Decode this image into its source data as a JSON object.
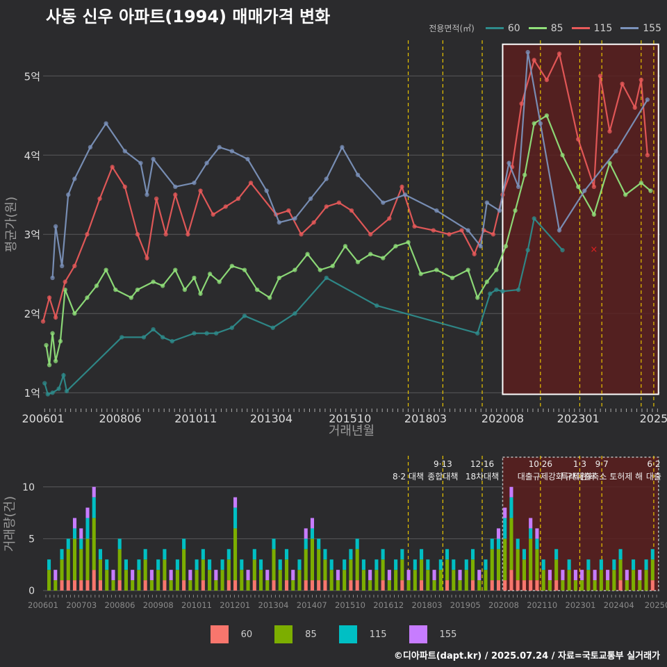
{
  "title": "사동 신우 아파트(1994) 매매가격 변화",
  "footer": "©디아파트(dapt.kr) / 2025.07.24 / 자료=국토교통부 실거래가",
  "legend_title": "전용면적(㎡)",
  "colors": {
    "line60": "#2e8b8b",
    "line85": "#90e07a",
    "line115": "#e85a5a",
    "line155": "#7b92bb",
    "bar60": "#f8766d",
    "bar85": "#7cae00",
    "bar115": "#00bfc4",
    "bar155": "#c77cff",
    "policy": "#e8c400",
    "highlight": "#5a1e1e"
  },
  "chart_data": [
    {
      "type": "line",
      "ylabel": "평균가(원)",
      "xlabel": "거래년월",
      "x_tick_labels": [
        "200601",
        "200806",
        "201011",
        "201304",
        "201510",
        "201803",
        "202008",
        "202301",
        "2025"
      ],
      "y_ticks": [
        1,
        2,
        3,
        4,
        5
      ],
      "y_tick_labels": [
        "1억",
        "2억",
        "3억",
        "4억",
        "5억"
      ],
      "ylim": [
        0.8,
        5.45
      ],
      "xlim": [
        2006.0,
        2025.6
      ],
      "highlight_range": [
        2020.6,
        2025.55
      ],
      "highlight_ylim": [
        0.98,
        5.4
      ],
      "policy_lines": [
        2017.6,
        2018.7,
        2019.95,
        2021.8,
        2023.05,
        2023.75,
        2025.0,
        2025.4
      ],
      "marker": {
        "x": 2023.5,
        "y": 2.82,
        "symbol": "x"
      },
      "series": [
        {
          "name": "60",
          "points": [
            [
              2006.05,
              1.12
            ],
            [
              2006.15,
              0.98
            ],
            [
              2006.3,
              1.0
            ],
            [
              2006.5,
              1.05
            ],
            [
              2006.65,
              1.22
            ],
            [
              2006.75,
              1.02
            ],
            [
              2008.5,
              1.7
            ],
            [
              2009.2,
              1.7
            ],
            [
              2009.5,
              1.8
            ],
            [
              2009.8,
              1.7
            ],
            [
              2010.1,
              1.65
            ],
            [
              2010.8,
              1.75
            ],
            [
              2011.2,
              1.75
            ],
            [
              2011.5,
              1.75
            ],
            [
              2012.0,
              1.82
            ],
            [
              2012.4,
              1.97
            ],
            [
              2013.3,
              1.82
            ],
            [
              2014.0,
              2.0
            ],
            [
              2015.0,
              2.45
            ],
            [
              2016.6,
              2.1
            ],
            [
              2019.8,
              1.75
            ],
            [
              2020.2,
              2.25
            ],
            [
              2020.4,
              2.3
            ],
            [
              2020.6,
              2.28
            ],
            [
              2021.1,
              2.3
            ],
            [
              2021.4,
              2.8
            ],
            [
              2021.6,
              3.2
            ],
            [
              2022.5,
              2.8
            ]
          ]
        },
        {
          "name": "85",
          "points": [
            [
              2006.1,
              1.6
            ],
            [
              2006.2,
              1.35
            ],
            [
              2006.3,
              1.75
            ],
            [
              2006.4,
              1.4
            ],
            [
              2006.55,
              1.65
            ],
            [
              2006.7,
              2.3
            ],
            [
              2007.0,
              2.0
            ],
            [
              2007.4,
              2.2
            ],
            [
              2007.7,
              2.35
            ],
            [
              2008.0,
              2.55
            ],
            [
              2008.3,
              2.3
            ],
            [
              2008.8,
              2.2
            ],
            [
              2009.0,
              2.3
            ],
            [
              2009.5,
              2.4
            ],
            [
              2009.8,
              2.35
            ],
            [
              2010.2,
              2.55
            ],
            [
              2010.5,
              2.3
            ],
            [
              2010.8,
              2.45
            ],
            [
              2011.0,
              2.25
            ],
            [
              2011.3,
              2.5
            ],
            [
              2011.6,
              2.4
            ],
            [
              2012.0,
              2.6
            ],
            [
              2012.4,
              2.55
            ],
            [
              2012.8,
              2.3
            ],
            [
              2013.2,
              2.2
            ],
            [
              2013.5,
              2.45
            ],
            [
              2014.0,
              2.55
            ],
            [
              2014.4,
              2.75
            ],
            [
              2014.8,
              2.55
            ],
            [
              2015.2,
              2.6
            ],
            [
              2015.6,
              2.85
            ],
            [
              2016.0,
              2.65
            ],
            [
              2016.4,
              2.75
            ],
            [
              2016.8,
              2.7
            ],
            [
              2017.2,
              2.85
            ],
            [
              2017.6,
              2.9
            ],
            [
              2018.0,
              2.5
            ],
            [
              2018.5,
              2.55
            ],
            [
              2019.0,
              2.45
            ],
            [
              2019.5,
              2.55
            ],
            [
              2019.8,
              2.2
            ],
            [
              2020.1,
              2.4
            ],
            [
              2020.4,
              2.55
            ],
            [
              2020.7,
              2.85
            ],
            [
              2021.0,
              3.3
            ],
            [
              2021.3,
              3.75
            ],
            [
              2021.6,
              4.4
            ],
            [
              2022.0,
              4.5
            ],
            [
              2022.5,
              4.0
            ],
            [
              2023.0,
              3.6
            ],
            [
              2023.5,
              3.25
            ],
            [
              2024.0,
              3.9
            ],
            [
              2024.5,
              3.5
            ],
            [
              2025.0,
              3.65
            ],
            [
              2025.3,
              3.55
            ]
          ]
        },
        {
          "name": "115",
          "points": [
            [
              2006.0,
              1.9
            ],
            [
              2006.2,
              2.2
            ],
            [
              2006.4,
              1.95
            ],
            [
              2006.7,
              2.4
            ],
            [
              2007.0,
              2.6
            ],
            [
              2007.4,
              3.0
            ],
            [
              2007.8,
              3.45
            ],
            [
              2008.2,
              3.85
            ],
            [
              2008.6,
              3.6
            ],
            [
              2009.0,
              3.0
            ],
            [
              2009.3,
              2.7
            ],
            [
              2009.6,
              3.45
            ],
            [
              2009.9,
              3.0
            ],
            [
              2010.2,
              3.5
            ],
            [
              2010.6,
              3.0
            ],
            [
              2011.0,
              3.55
            ],
            [
              2011.4,
              3.25
            ],
            [
              2011.8,
              3.35
            ],
            [
              2012.2,
              3.45
            ],
            [
              2012.6,
              3.65
            ],
            [
              2013.4,
              3.25
            ],
            [
              2013.8,
              3.3
            ],
            [
              2014.2,
              3.0
            ],
            [
              2014.6,
              3.15
            ],
            [
              2015.0,
              3.35
            ],
            [
              2015.4,
              3.4
            ],
            [
              2015.8,
              3.3
            ],
            [
              2016.4,
              3.0
            ],
            [
              2017.0,
              3.2
            ],
            [
              2017.4,
              3.6
            ],
            [
              2017.8,
              3.1
            ],
            [
              2018.4,
              3.05
            ],
            [
              2018.9,
              3.0
            ],
            [
              2019.3,
              3.05
            ],
            [
              2019.7,
              2.75
            ],
            [
              2020.0,
              3.05
            ],
            [
              2020.3,
              3.0
            ],
            [
              2020.6,
              3.5
            ],
            [
              2020.9,
              3.85
            ],
            [
              2021.2,
              4.65
            ],
            [
              2021.6,
              5.2
            ],
            [
              2022.0,
              4.95
            ],
            [
              2022.4,
              5.28
            ],
            [
              2023.0,
              4.2
            ],
            [
              2023.5,
              3.6
            ],
            [
              2023.7,
              5.0
            ],
            [
              2024.0,
              4.3
            ],
            [
              2024.4,
              4.9
            ],
            [
              2024.8,
              4.6
            ],
            [
              2025.0,
              4.95
            ],
            [
              2025.2,
              4.0
            ]
          ]
        },
        {
          "name": "155",
          "points": [
            [
              2006.3,
              2.45
            ],
            [
              2006.4,
              3.1
            ],
            [
              2006.6,
              2.6
            ],
            [
              2006.8,
              3.5
            ],
            [
              2007.0,
              3.7
            ],
            [
              2007.5,
              4.1
            ],
            [
              2008.0,
              4.4
            ],
            [
              2008.6,
              4.05
            ],
            [
              2009.1,
              3.9
            ],
            [
              2009.3,
              3.5
            ],
            [
              2009.5,
              3.95
            ],
            [
              2010.2,
              3.6
            ],
            [
              2010.8,
              3.65
            ],
            [
              2011.2,
              3.9
            ],
            [
              2011.6,
              4.1
            ],
            [
              2012.0,
              4.05
            ],
            [
              2012.5,
              3.95
            ],
            [
              2013.1,
              3.55
            ],
            [
              2013.5,
              3.15
            ],
            [
              2014.0,
              3.2
            ],
            [
              2014.5,
              3.45
            ],
            [
              2015.0,
              3.7
            ],
            [
              2015.5,
              4.1
            ],
            [
              2016.0,
              3.75
            ],
            [
              2016.8,
              3.4
            ],
            [
              2017.5,
              3.5
            ],
            [
              2018.5,
              3.3
            ],
            [
              2019.5,
              3.05
            ],
            [
              2019.9,
              2.85
            ],
            [
              2020.1,
              3.4
            ],
            [
              2020.5,
              3.3
            ],
            [
              2020.8,
              3.9
            ],
            [
              2021.1,
              3.6
            ],
            [
              2021.4,
              5.3
            ],
            [
              2021.8,
              4.4
            ],
            [
              2022.4,
              3.05
            ],
            [
              2023.2,
              3.55
            ],
            [
              2024.2,
              4.05
            ],
            [
              2025.2,
              4.7
            ]
          ]
        }
      ]
    },
    {
      "type": "bar",
      "ylabel": "거래량(건)",
      "y_ticks": [
        0,
        5,
        10
      ],
      "y_tick_labels": [
        "0",
        "5",
        "10"
      ],
      "ylim": [
        0,
        13
      ],
      "x_tick_labels": [
        "200601",
        "200703",
        "200806",
        "200908",
        "201011",
        "201201",
        "201304",
        "201407",
        "201510",
        "201612",
        "201803",
        "201905",
        "202008",
        "202110",
        "202301",
        "202404",
        "20250"
      ],
      "highlight_range": [
        2020.6,
        2025.55
      ],
      "annotations": [
        {
          "x": 2017.6,
          "line1": "",
          "line2": "8·2 대책"
        },
        {
          "x": 2018.7,
          "line1": "9·13",
          "line2": "종합대책"
        },
        {
          "x": 2019.95,
          "line1": "12·16",
          "line2": "18차대책"
        },
        {
          "x": 2021.8,
          "line1": "10·26",
          "line2": "대출규제강화"
        },
        {
          "x": 2023.05,
          "line1": "1·3",
          "line2": "규제완화"
        },
        {
          "x": 2023.75,
          "line1": "9·7",
          "line2": "특례대출축소 토허제 해"
        },
        {
          "x": 2025.4,
          "line1": "6·2",
          "line2": "대출"
        }
      ],
      "series_names": [
        "60",
        "85",
        "115",
        "155"
      ],
      "stack_totals_sample": [
        3,
        2,
        4,
        5,
        7,
        6,
        8,
        10,
        4,
        3,
        2,
        5,
        3,
        2,
        3,
        4,
        2,
        3,
        4,
        2,
        3,
        5,
        2,
        3,
        4,
        3,
        2,
        3,
        4,
        9,
        3,
        2,
        4,
        3,
        2,
        5,
        3,
        4,
        2,
        3,
        6,
        7,
        5,
        4,
        3,
        2,
        3,
        4,
        5,
        3,
        2,
        3,
        4,
        2,
        3,
        4,
        2,
        3,
        4,
        3,
        2,
        3,
        4,
        3,
        2,
        3,
        4,
        2,
        3,
        5,
        6,
        8,
        10,
        5,
        4,
        7,
        6,
        3,
        2,
        4,
        2,
        3,
        2,
        2,
        3,
        2,
        3,
        2,
        3,
        4,
        2,
        3,
        2,
        3,
        4
      ]
    }
  ],
  "legend": [
    {
      "label": "60"
    },
    {
      "label": "85"
    },
    {
      "label": "115"
    },
    {
      "label": "155"
    }
  ]
}
